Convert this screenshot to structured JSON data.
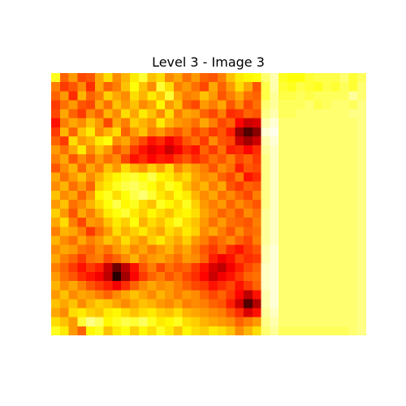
{
  "chart_data": {
    "type": "heatmap",
    "title": "Level 3 - Image 3",
    "xlabel": "",
    "ylabel": "",
    "colormap": "hot",
    "axes_visible": false,
    "value_range": [
      0,
      1
    ],
    "values": [
      [
        0.78,
        0.52,
        0.6,
        0.48,
        0.5,
        0.62,
        0.7,
        0.58,
        0.64,
        0.72,
        0.8,
        0.66,
        0.7,
        0.58,
        0.62,
        0.54,
        0.6,
        0.52,
        0.5,
        0.56,
        0.66,
        0.72,
        0.74,
        0.76,
        0.86,
        0.92,
        0.78,
        0.76,
        0.76,
        0.8,
        0.82,
        0.82,
        0.82,
        0.86,
        0.8,
        0.84
      ],
      [
        0.56,
        0.46,
        0.5,
        0.58,
        0.44,
        0.62,
        0.52,
        0.56,
        0.66,
        0.76,
        0.66,
        0.58,
        0.8,
        0.7,
        0.56,
        0.6,
        0.54,
        0.48,
        0.62,
        0.52,
        0.6,
        0.7,
        0.62,
        0.5,
        0.82,
        0.92,
        0.8,
        0.78,
        0.82,
        0.8,
        0.78,
        0.82,
        0.8,
        0.84,
        0.8,
        0.86
      ],
      [
        0.52,
        0.6,
        0.44,
        0.64,
        0.52,
        0.56,
        0.68,
        0.62,
        0.58,
        0.7,
        0.64,
        0.72,
        0.66,
        0.8,
        0.62,
        0.56,
        0.58,
        0.66,
        0.6,
        0.5,
        0.56,
        0.62,
        0.54,
        0.52,
        0.82,
        0.9,
        0.82,
        0.82,
        0.84,
        0.82,
        0.84,
        0.84,
        0.84,
        0.84,
        0.9,
        0.86
      ],
      [
        0.46,
        0.54,
        0.6,
        0.5,
        0.48,
        0.62,
        0.54,
        0.66,
        0.6,
        0.66,
        0.58,
        0.62,
        0.74,
        0.6,
        0.66,
        0.52,
        0.48,
        0.6,
        0.56,
        0.62,
        0.5,
        0.58,
        0.48,
        0.54,
        0.86,
        0.9,
        0.84,
        0.84,
        0.84,
        0.86,
        0.82,
        0.84,
        0.86,
        0.86,
        0.84,
        0.88
      ],
      [
        0.48,
        0.62,
        0.52,
        0.46,
        0.58,
        0.52,
        0.64,
        0.58,
        0.7,
        0.62,
        0.72,
        0.66,
        0.58,
        0.7,
        0.56,
        0.62,
        0.6,
        0.52,
        0.48,
        0.56,
        0.44,
        0.46,
        0.52,
        0.5,
        0.88,
        0.92,
        0.84,
        0.84,
        0.86,
        0.86,
        0.86,
        0.86,
        0.86,
        0.86,
        0.88,
        0.88
      ],
      [
        0.4,
        0.56,
        0.62,
        0.58,
        0.66,
        0.6,
        0.48,
        0.62,
        0.56,
        0.68,
        0.64,
        0.6,
        0.72,
        0.64,
        0.6,
        0.58,
        0.54,
        0.62,
        0.56,
        0.48,
        0.52,
        0.38,
        0.3,
        0.32,
        0.92,
        0.96,
        0.86,
        0.86,
        0.86,
        0.86,
        0.86,
        0.86,
        0.86,
        0.86,
        0.86,
        0.88
      ],
      [
        0.46,
        0.64,
        0.52,
        0.66,
        0.72,
        0.58,
        0.64,
        0.7,
        0.52,
        0.6,
        0.66,
        0.56,
        0.6,
        0.54,
        0.5,
        0.56,
        0.48,
        0.52,
        0.46,
        0.5,
        0.42,
        0.22,
        0.12,
        0.2,
        0.96,
        0.98,
        0.86,
        0.86,
        0.86,
        0.86,
        0.86,
        0.86,
        0.86,
        0.86,
        0.86,
        0.88
      ],
      [
        0.52,
        0.46,
        0.7,
        0.6,
        0.64,
        0.72,
        0.76,
        0.58,
        0.62,
        0.54,
        0.48,
        0.4,
        0.44,
        0.36,
        0.42,
        0.5,
        0.54,
        0.46,
        0.58,
        0.5,
        0.48,
        0.3,
        0.24,
        0.3,
        0.92,
        0.96,
        0.86,
        0.86,
        0.86,
        0.86,
        0.86,
        0.86,
        0.86,
        0.86,
        0.86,
        0.88
      ],
      [
        0.6,
        0.54,
        0.62,
        0.72,
        0.58,
        0.66,
        0.6,
        0.5,
        0.56,
        0.46,
        0.4,
        0.34,
        0.38,
        0.3,
        0.36,
        0.44,
        0.4,
        0.52,
        0.46,
        0.54,
        0.42,
        0.44,
        0.38,
        0.44,
        0.9,
        0.94,
        0.86,
        0.86,
        0.86,
        0.86,
        0.86,
        0.86,
        0.86,
        0.86,
        0.86,
        0.88
      ],
      [
        0.56,
        0.62,
        0.5,
        0.58,
        0.52,
        0.6,
        0.54,
        0.58,
        0.48,
        0.4,
        0.44,
        0.38,
        0.42,
        0.4,
        0.46,
        0.5,
        0.44,
        0.48,
        0.54,
        0.5,
        0.56,
        0.48,
        0.52,
        0.46,
        0.88,
        0.94,
        0.86,
        0.86,
        0.86,
        0.86,
        0.86,
        0.86,
        0.86,
        0.86,
        0.86,
        0.88
      ],
      [
        0.5,
        0.58,
        0.64,
        0.52,
        0.62,
        0.56,
        0.66,
        0.6,
        0.7,
        0.64,
        0.6,
        0.68,
        0.62,
        0.7,
        0.58,
        0.64,
        0.6,
        0.56,
        0.5,
        0.58,
        0.54,
        0.42,
        0.5,
        0.48,
        0.88,
        0.94,
        0.86,
        0.86,
        0.86,
        0.86,
        0.86,
        0.86,
        0.86,
        0.86,
        0.86,
        0.88
      ],
      [
        0.62,
        0.54,
        0.6,
        0.66,
        0.58,
        0.64,
        0.7,
        0.74,
        0.78,
        0.8,
        0.76,
        0.82,
        0.74,
        0.72,
        0.66,
        0.7,
        0.62,
        0.58,
        0.6,
        0.52,
        0.48,
        0.56,
        0.4,
        0.44,
        0.88,
        0.94,
        0.86,
        0.86,
        0.86,
        0.86,
        0.86,
        0.86,
        0.86,
        0.86,
        0.86,
        0.88
      ],
      [
        0.58,
        0.64,
        0.54,
        0.6,
        0.52,
        0.68,
        0.72,
        0.78,
        0.82,
        0.84,
        0.8,
        0.76,
        0.7,
        0.78,
        0.74,
        0.66,
        0.6,
        0.64,
        0.56,
        0.62,
        0.5,
        0.46,
        0.52,
        0.5,
        0.88,
        0.94,
        0.86,
        0.86,
        0.86,
        0.86,
        0.86,
        0.86,
        0.86,
        0.86,
        0.86,
        0.88
      ],
      [
        0.66,
        0.58,
        0.62,
        0.52,
        0.6,
        0.74,
        0.78,
        0.7,
        0.76,
        0.82,
        0.86,
        0.8,
        0.72,
        0.68,
        0.76,
        0.72,
        0.64,
        0.58,
        0.62,
        0.54,
        0.58,
        0.52,
        0.48,
        0.56,
        0.88,
        0.94,
        0.86,
        0.86,
        0.86,
        0.86,
        0.86,
        0.86,
        0.86,
        0.86,
        0.86,
        0.88
      ],
      [
        0.6,
        0.66,
        0.54,
        0.58,
        0.64,
        0.7,
        0.76,
        0.82,
        0.74,
        0.78,
        0.7,
        0.66,
        0.78,
        0.74,
        0.7,
        0.78,
        0.68,
        0.6,
        0.56,
        0.6,
        0.52,
        0.58,
        0.54,
        0.5,
        0.88,
        0.94,
        0.86,
        0.86,
        0.86,
        0.86,
        0.86,
        0.86,
        0.86,
        0.86,
        0.86,
        0.88
      ],
      [
        0.68,
        0.6,
        0.5,
        0.62,
        0.56,
        0.64,
        0.72,
        0.76,
        0.8,
        0.72,
        0.68,
        0.74,
        0.7,
        0.66,
        0.72,
        0.74,
        0.7,
        0.62,
        0.58,
        0.52,
        0.56,
        0.5,
        0.58,
        0.54,
        0.9,
        0.94,
        0.86,
        0.86,
        0.86,
        0.86,
        0.86,
        0.86,
        0.86,
        0.86,
        0.86,
        0.88
      ],
      [
        0.62,
        0.7,
        0.56,
        0.48,
        0.6,
        0.58,
        0.66,
        0.72,
        0.68,
        0.76,
        0.64,
        0.7,
        0.66,
        0.72,
        0.78,
        0.7,
        0.66,
        0.6,
        0.54,
        0.6,
        0.54,
        0.52,
        0.5,
        0.56,
        0.9,
        0.94,
        0.86,
        0.86,
        0.86,
        0.86,
        0.86,
        0.86,
        0.86,
        0.86,
        0.86,
        0.88
      ],
      [
        0.56,
        0.64,
        0.62,
        0.56,
        0.46,
        0.54,
        0.6,
        0.7,
        0.64,
        0.68,
        0.72,
        0.66,
        0.62,
        0.7,
        0.66,
        0.72,
        0.68,
        0.58,
        0.62,
        0.56,
        0.5,
        0.58,
        0.52,
        0.54,
        0.9,
        0.94,
        0.86,
        0.86,
        0.86,
        0.86,
        0.86,
        0.86,
        0.86,
        0.86,
        0.86,
        0.88
      ],
      [
        0.64,
        0.58,
        0.54,
        0.62,
        0.56,
        0.6,
        0.66,
        0.62,
        0.7,
        0.64,
        0.6,
        0.68,
        0.72,
        0.66,
        0.62,
        0.68,
        0.6,
        0.56,
        0.5,
        0.54,
        0.58,
        0.52,
        0.48,
        0.56,
        0.9,
        0.94,
        0.86,
        0.86,
        0.86,
        0.86,
        0.86,
        0.86,
        0.86,
        0.86,
        0.86,
        0.88
      ],
      [
        0.58,
        0.62,
        0.6,
        0.54,
        0.52,
        0.58,
        0.54,
        0.6,
        0.64,
        0.58,
        0.62,
        0.56,
        0.6,
        0.64,
        0.58,
        0.62,
        0.56,
        0.5,
        0.46,
        0.52,
        0.44,
        0.4,
        0.46,
        0.5,
        0.92,
        0.96,
        0.86,
        0.86,
        0.86,
        0.86,
        0.86,
        0.86,
        0.86,
        0.86,
        0.86,
        0.88
      ],
      [
        0.62,
        0.56,
        0.52,
        0.46,
        0.54,
        0.56,
        0.48,
        0.52,
        0.58,
        0.64,
        0.56,
        0.6,
        0.62,
        0.58,
        0.54,
        0.6,
        0.58,
        0.52,
        0.42,
        0.36,
        0.4,
        0.48,
        0.44,
        0.46,
        0.92,
        0.96,
        0.86,
        0.86,
        0.86,
        0.86,
        0.86,
        0.86,
        0.86,
        0.86,
        0.86,
        0.88
      ],
      [
        0.56,
        0.52,
        0.46,
        0.4,
        0.46,
        0.42,
        0.3,
        0.16,
        0.28,
        0.4,
        0.5,
        0.56,
        0.48,
        0.54,
        0.5,
        0.52,
        0.46,
        0.4,
        0.32,
        0.28,
        0.36,
        0.42,
        0.48,
        0.52,
        0.94,
        0.96,
        0.86,
        0.86,
        0.86,
        0.86,
        0.86,
        0.86,
        0.86,
        0.86,
        0.86,
        0.88
      ],
      [
        0.6,
        0.54,
        0.5,
        0.44,
        0.4,
        0.36,
        0.28,
        0.06,
        0.24,
        0.38,
        0.46,
        0.52,
        0.56,
        0.5,
        0.54,
        0.48,
        0.44,
        0.38,
        0.3,
        0.36,
        0.4,
        0.46,
        0.52,
        0.54,
        0.94,
        0.96,
        0.86,
        0.86,
        0.86,
        0.86,
        0.86,
        0.86,
        0.86,
        0.86,
        0.86,
        0.88
      ],
      [
        0.64,
        0.58,
        0.62,
        0.56,
        0.5,
        0.46,
        0.42,
        0.36,
        0.44,
        0.52,
        0.58,
        0.62,
        0.58,
        0.6,
        0.56,
        0.52,
        0.48,
        0.46,
        0.4,
        0.44,
        0.48,
        0.4,
        0.46,
        0.52,
        0.94,
        0.96,
        0.86,
        0.86,
        0.86,
        0.86,
        0.86,
        0.86,
        0.86,
        0.86,
        0.86,
        0.88
      ],
      [
        0.6,
        0.66,
        0.58,
        0.62,
        0.6,
        0.56,
        0.52,
        0.58,
        0.62,
        0.66,
        0.62,
        0.58,
        0.64,
        0.6,
        0.56,
        0.6,
        0.58,
        0.52,
        0.48,
        0.52,
        0.46,
        0.38,
        0.28,
        0.4,
        0.92,
        0.96,
        0.86,
        0.86,
        0.86,
        0.86,
        0.86,
        0.86,
        0.86,
        0.86,
        0.86,
        0.88
      ],
      [
        0.66,
        0.62,
        0.66,
        0.58,
        0.64,
        0.68,
        0.66,
        0.62,
        0.58,
        0.62,
        0.66,
        0.64,
        0.6,
        0.58,
        0.62,
        0.56,
        0.58,
        0.56,
        0.52,
        0.5,
        0.42,
        0.3,
        0.12,
        0.26,
        0.92,
        0.96,
        0.86,
        0.86,
        0.86,
        0.86,
        0.86,
        0.86,
        0.86,
        0.86,
        0.86,
        0.88
      ],
      [
        0.62,
        0.58,
        0.7,
        0.72,
        0.68,
        0.66,
        0.72,
        0.74,
        0.7,
        0.66,
        0.7,
        0.72,
        0.68,
        0.66,
        0.7,
        0.64,
        0.62,
        0.6,
        0.58,
        0.56,
        0.5,
        0.44,
        0.32,
        0.4,
        0.9,
        0.94,
        0.86,
        0.86,
        0.86,
        0.86,
        0.86,
        0.86,
        0.86,
        0.86,
        0.86,
        0.88
      ],
      [
        0.7,
        0.66,
        0.6,
        0.8,
        0.88,
        0.84,
        0.74,
        0.78,
        0.82,
        0.8,
        0.84,
        0.78,
        0.72,
        0.74,
        0.78,
        0.7,
        0.68,
        0.64,
        0.62,
        0.6,
        0.58,
        0.52,
        0.56,
        0.6,
        0.88,
        0.92,
        0.86,
        0.86,
        0.86,
        0.86,
        0.86,
        0.86,
        0.86,
        0.86,
        0.86,
        0.88
      ],
      [
        0.78,
        0.72,
        0.6,
        0.52,
        0.74,
        0.78,
        0.66,
        0.72,
        0.76,
        0.68,
        0.74,
        0.7,
        0.78,
        0.72,
        0.66,
        0.74,
        0.7,
        0.68,
        0.72,
        0.7,
        0.66,
        0.58,
        0.64,
        0.7,
        0.86,
        0.9,
        0.84,
        0.84,
        0.84,
        0.84,
        0.84,
        0.84,
        0.84,
        0.84,
        0.86,
        0.88
      ]
    ]
  },
  "colors": {
    "background": "#ffffff",
    "text": "#000000"
  }
}
